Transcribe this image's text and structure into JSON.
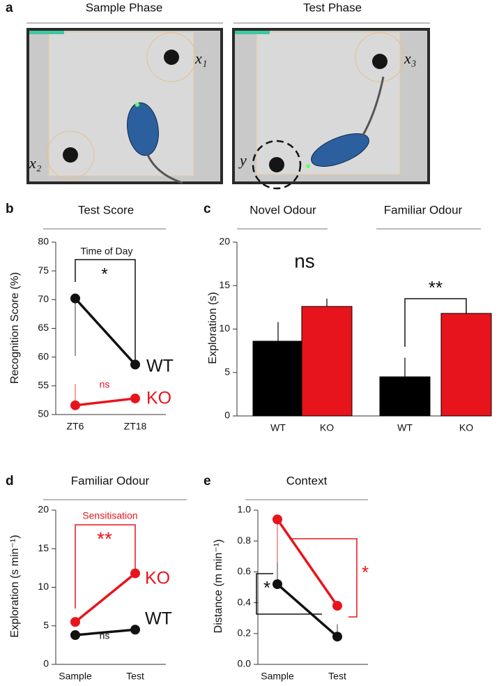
{
  "panel_labels": [
    "a",
    "b",
    "c",
    "d",
    "e"
  ],
  "panel_a": {
    "titles": [
      "Sample Phase",
      "Test Phase"
    ],
    "object_labels": [
      "x₁",
      "x₂",
      "x₃",
      "y"
    ]
  },
  "chart_data": [
    {
      "type": "line",
      "title": "Test Score",
      "ylabel": "Recognition Score (%)",
      "categories": [
        "ZT6",
        "ZT18"
      ],
      "ylim": [
        50,
        80
      ],
      "yticks": [
        50,
        55,
        60,
        65,
        70,
        75,
        80
      ],
      "series": [
        {
          "name": "WT",
          "color": "#111111",
          "values": [
            70.2,
            58.7
          ],
          "errors": [
            10,
            null
          ],
          "error_side": "down"
        },
        {
          "name": "KO",
          "color": "#e8141c",
          "values": [
            51.6,
            52.8
          ],
          "errors": [
            3.7,
            null
          ],
          "error_side": "up"
        }
      ],
      "annotations": [
        {
          "text": "Time of Day",
          "color": "#111111"
        },
        {
          "text": "*",
          "color": "#111111"
        },
        {
          "text": "ns",
          "color": "#e8141c"
        }
      ]
    },
    {
      "type": "bar",
      "group_titles": [
        "Novel Odour",
        "Familiar Odour"
      ],
      "ylabel": "Exploration (s)",
      "categories": [
        "WT",
        "KO",
        "WT",
        "KO"
      ],
      "values": [
        8.6,
        12.6,
        4.5,
        11.8
      ],
      "errors": [
        2.2,
        0.9,
        2.2,
        1.0
      ],
      "colors": [
        "#000000",
        "#e8141c",
        "#000000",
        "#e8141c"
      ],
      "ylim": [
        0,
        20
      ],
      "yticks": [
        0,
        5,
        10,
        15,
        20
      ],
      "annotations": [
        {
          "text": "ns",
          "color": "#111111"
        },
        {
          "text": "**",
          "color": "#111111"
        }
      ]
    },
    {
      "type": "line",
      "title": "Familiar Odour",
      "ylabel": "Exploration (s min⁻¹)",
      "categories": [
        "Sample",
        "Test"
      ],
      "ylim": [
        0,
        20
      ],
      "yticks": [
        0,
        5,
        10,
        15,
        20
      ],
      "series": [
        {
          "name": "KO",
          "color": "#e8141c",
          "values": [
            5.5,
            11.8
          ]
        },
        {
          "name": "WT",
          "color": "#111111",
          "values": [
            3.8,
            4.5
          ]
        }
      ],
      "annotations": [
        {
          "text": "Sensitisation",
          "color": "#e8141c"
        },
        {
          "text": "**",
          "color": "#e8141c"
        },
        {
          "text": "ns",
          "color": "#111111"
        }
      ]
    },
    {
      "type": "line",
      "title": "Context",
      "ylabel": "Distance (m min⁻¹)",
      "categories": [
        "Sample",
        "Test"
      ],
      "ylim": [
        0,
        1
      ],
      "yticks": [
        {
          "value": 0,
          "label": "0.0"
        },
        0.2,
        0.4,
        0.6,
        0.8,
        {
          "value": 1,
          "label": "1.0"
        }
      ],
      "series": [
        {
          "color": "#e8141c",
          "values": [
            0.94,
            0.38
          ],
          "errors": [
            0.28,
            null
          ],
          "error_side": "down"
        },
        {
          "color": "#111111",
          "values": [
            0.52,
            0.18
          ],
          "errors": [
            0.14,
            0.08
          ],
          "error_side": "up"
        }
      ],
      "annotations": [
        {
          "text": "*",
          "color": "#111111"
        },
        {
          "text": "*",
          "color": "#e8141c"
        }
      ]
    }
  ]
}
